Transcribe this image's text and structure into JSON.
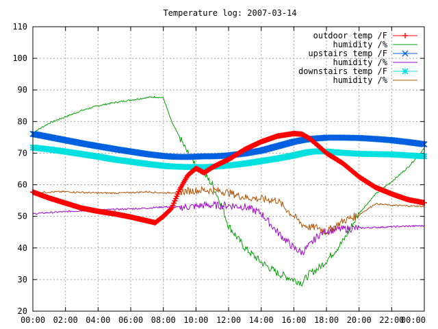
{
  "chart_data": {
    "type": "line",
    "title": "Temperature log: 2007-03-14",
    "xlabel": "",
    "ylabel": "",
    "xlim": [
      "00:00",
      "24:00"
    ],
    "ylim": [
      20,
      110
    ],
    "grid": true,
    "legend_position": "top-right",
    "x_tick_labels": [
      "00:00",
      "02:00",
      "04:00",
      "06:00",
      "08:00",
      "10:00",
      "12:00",
      "14:00",
      "16:00",
      "18:00",
      "20:00",
      "22:00",
      "00:00"
    ],
    "y_tick_labels": [
      "20",
      "30",
      "40",
      "50",
      "60",
      "70",
      "80",
      "90",
      "100",
      "110"
    ],
    "x_hours": [
      0,
      1,
      2,
      3,
      4,
      5,
      6,
      7,
      7.5,
      8,
      8.5,
      9,
      9.5,
      10,
      10.5,
      11,
      11.5,
      12,
      13,
      14,
      15,
      16,
      16.5,
      17,
      17.5,
      18,
      19,
      20,
      21,
      22,
      23,
      24
    ],
    "series": [
      {
        "name": "outdoor temp /F",
        "color": "#ff0000",
        "marker": "plus",
        "thick": true,
        "values": [
          57.7,
          55.8,
          54.2,
          52.6,
          51.6,
          50.8,
          49.8,
          48.6,
          48.0,
          50.0,
          52.5,
          58.5,
          63.0,
          65.2,
          63.8,
          65.5,
          66.8,
          68.0,
          71.2,
          73.6,
          75.4,
          76.2,
          76.0,
          74.5,
          72.3,
          70.0,
          66.8,
          62.5,
          59.2,
          57.1,
          55.3,
          54.3
        ]
      },
      {
        "name": "humidity /%",
        "color": "#00a000",
        "marker": "none",
        "thick": false,
        "values": [
          76.5,
          79.5,
          81.5,
          83.5,
          85.0,
          86.0,
          86.8,
          87.6,
          87.8,
          87.5,
          80.0,
          75.0,
          70.0,
          66.5,
          63.5,
          60.0,
          54.5,
          47.0,
          40.0,
          35.5,
          32.0,
          30.0,
          29.0,
          32.0,
          33.5,
          36.0,
          42.0,
          51.0,
          57.0,
          61.0,
          65.5,
          71.5
        ]
      },
      {
        "name": "upstairs temp /F",
        "color": "#0060e0",
        "marker": "cross",
        "thick": true,
        "values": [
          76.1,
          75.1,
          74.1,
          73.1,
          72.2,
          71.3,
          70.5,
          69.7,
          69.4,
          69.1,
          68.9,
          68.8,
          68.8,
          68.9,
          69.0,
          69.0,
          69.1,
          69.3,
          69.9,
          70.8,
          72.2,
          73.6,
          74.1,
          74.5,
          74.7,
          74.9,
          74.9,
          74.8,
          74.5,
          74.1,
          73.5,
          72.8
        ]
      },
      {
        "name": "humidity /%",
        "color": "#a000d0",
        "marker": "none",
        "thick": false,
        "values": [
          50.8,
          51.2,
          51.5,
          51.8,
          52.0,
          52.2,
          52.4,
          52.6,
          52.8,
          53.0,
          53.0,
          52.9,
          53.0,
          53.2,
          53.5,
          53.5,
          53.4,
          53.5,
          53.0,
          51.0,
          45.0,
          40.0,
          38.5,
          41.0,
          44.0,
          45.5,
          46.0,
          46.3,
          46.5,
          46.7,
          46.9,
          47.0
        ]
      },
      {
        "name": "downstairs temp /F",
        "color": "#00e0e0",
        "marker": "star",
        "thick": true,
        "values": [
          71.8,
          71.2,
          70.5,
          69.7,
          68.9,
          68.0,
          67.3,
          66.6,
          66.3,
          66.0,
          65.8,
          65.7,
          65.6,
          65.6,
          65.6,
          65.7,
          65.9,
          66.1,
          66.7,
          67.5,
          68.3,
          69.3,
          69.9,
          70.4,
          70.6,
          70.5,
          70.1,
          69.8,
          69.7,
          69.6,
          69.3,
          69.0
        ]
      },
      {
        "name": "humidity /%",
        "color": "#b05000",
        "marker": "none",
        "thick": false,
        "values": [
          57.5,
          57.7,
          57.8,
          57.6,
          57.4,
          57.4,
          57.5,
          57.8,
          57.6,
          57.4,
          57.5,
          57.8,
          58.0,
          58.2,
          58.3,
          58.2,
          58.0,
          57.5,
          56.0,
          55.5,
          55.0,
          50.0,
          47.5,
          46.5,
          46.5,
          45.0,
          48.5,
          50.5,
          54.0,
          53.5,
          53.3,
          53.2
        ]
      }
    ]
  }
}
